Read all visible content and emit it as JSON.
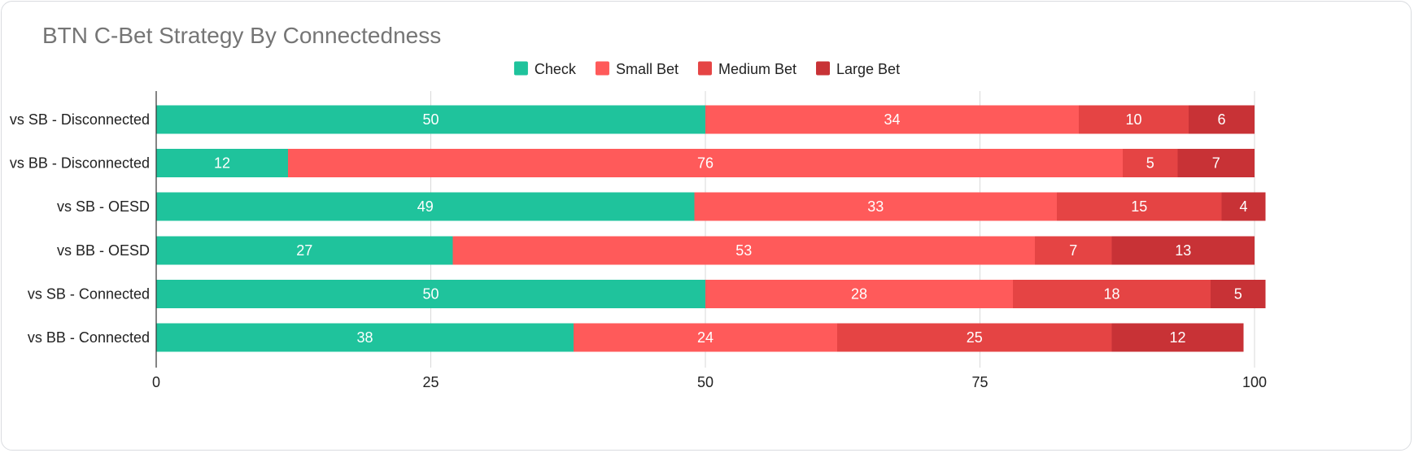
{
  "chart_data": {
    "type": "bar",
    "orientation": "horizontal",
    "stacked": true,
    "title": "BTN C-Bet Strategy By Connectedness",
    "categories": [
      "vs SB - Disconnected",
      "vs BB - Disconnected",
      "vs SB - OESD",
      "vs BB - OESD",
      "vs SB - Connected",
      "vs BB - Connected"
    ],
    "series": [
      {
        "name": "Check",
        "color": "#1fc39c",
        "values": [
          50,
          12,
          49,
          27,
          50,
          38
        ]
      },
      {
        "name": "Small Bet",
        "color": "#ff5a5a",
        "values": [
          34,
          76,
          33,
          53,
          28,
          24
        ]
      },
      {
        "name": "Medium Bet",
        "color": "#e54444",
        "values": [
          10,
          5,
          15,
          7,
          18,
          25
        ]
      },
      {
        "name": "Large Bet",
        "color": "#c83236",
        "values": [
          6,
          7,
          4,
          13,
          5,
          12
        ]
      }
    ],
    "xlim": [
      0,
      100
    ],
    "xticks": [
      0,
      25,
      50,
      75,
      100
    ],
    "grid": true,
    "legend": "top-center",
    "data_labels": true
  }
}
